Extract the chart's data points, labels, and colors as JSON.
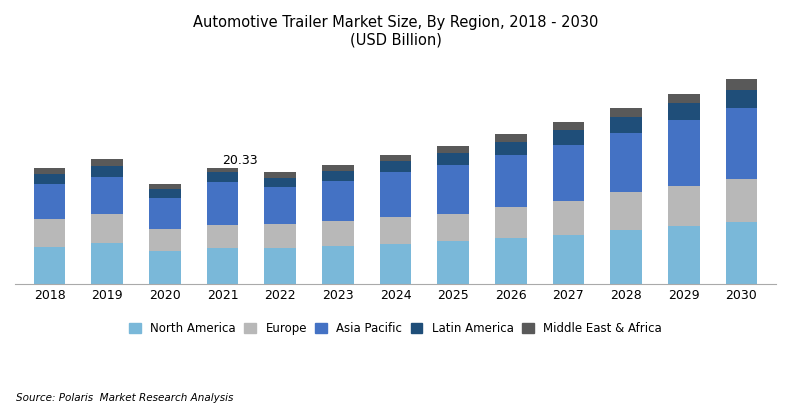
{
  "years": [
    2018,
    2019,
    2020,
    2021,
    2022,
    2023,
    2024,
    2025,
    2026,
    2027,
    2028,
    2029,
    2030
  ],
  "regions": [
    "North America",
    "Europe",
    "Asia Pacific",
    "Latin America",
    "Middle East & Africa"
  ],
  "colors": [
    "#7ab8d9",
    "#b8b8b8",
    "#4472c4",
    "#1f4e79",
    "#595959"
  ],
  "data": {
    "North America": [
      6.5,
      7.2,
      5.8,
      6.2,
      6.3,
      6.6,
      7.0,
      7.5,
      8.0,
      8.5,
      9.5,
      10.2,
      10.8
    ],
    "Europe": [
      4.8,
      5.0,
      3.8,
      4.1,
      4.2,
      4.4,
      4.7,
      4.8,
      5.5,
      6.0,
      6.5,
      7.0,
      7.5
    ],
    "Asia Pacific": [
      6.2,
      6.5,
      5.5,
      7.5,
      6.5,
      7.0,
      7.8,
      8.5,
      9.0,
      9.8,
      10.5,
      11.5,
      12.5
    ],
    "Latin America": [
      1.8,
      2.0,
      1.5,
      1.8,
      1.6,
      1.8,
      2.0,
      2.2,
      2.4,
      2.6,
      2.8,
      3.0,
      3.2
    ],
    "Middle East & Africa": [
      1.0,
      1.1,
      0.8,
      0.73,
      0.9,
      1.0,
      1.1,
      1.2,
      1.3,
      1.4,
      1.5,
      1.6,
      1.8
    ]
  },
  "annotation_year": 2021,
  "annotation_value": "20.33",
  "title_line1": "Automotive Trailer Market Size, By Region, 2018 - 2030",
  "title_line2": "(USD Billion)",
  "source_text": "Source: Polaris  Market Research Analysis",
  "bar_width": 0.55,
  "background_color": "#ffffff",
  "ylim": [
    0,
    40
  ]
}
